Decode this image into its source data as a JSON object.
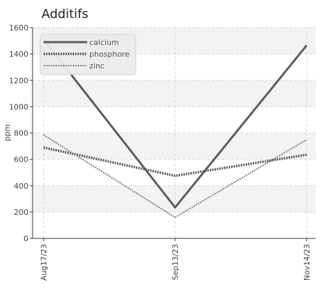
{
  "chart_data": {
    "type": "line",
    "title": "Additifs",
    "xlabel": "",
    "ylabel": "ppm",
    "categories": [
      "Aug17/23",
      "Sep13/23",
      "Nov14/23"
    ],
    "ylim": [
      0,
      1600
    ],
    "yticks": [
      0,
      200,
      400,
      600,
      800,
      1000,
      1200,
      1400,
      1600
    ],
    "grid": true,
    "legend_position": "top-left",
    "series": [
      {
        "name": "calcium",
        "values": [
          1510,
          235,
          1465
        ],
        "color": "#5a5a5a",
        "style": "solid"
      },
      {
        "name": "phosphore",
        "values": [
          690,
          475,
          635
        ],
        "color": "#555555",
        "style": "dotted"
      },
      {
        "name": "zinc",
        "values": [
          785,
          160,
          750
        ],
        "color": "#7a7a7a",
        "style": "dotted"
      }
    ]
  }
}
